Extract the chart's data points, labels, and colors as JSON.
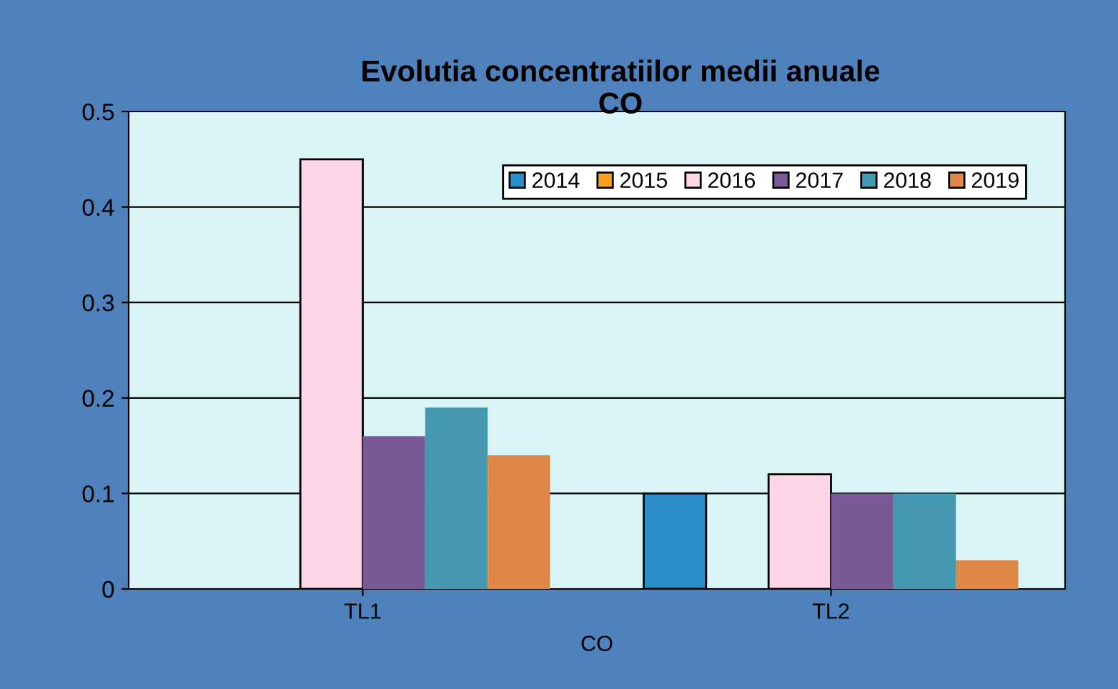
{
  "chart_data": {
    "type": "bar",
    "title": "Evolutia concentratiilor medii anuale\nCO",
    "xlabel": "CO",
    "categories": [
      "TL1",
      "TL2"
    ],
    "series": [
      {
        "name": "2014",
        "color": "#2a8fc8",
        "values": [
          null,
          0.1
        ]
      },
      {
        "name": "2015",
        "color": "#ffa020",
        "values": [
          null,
          null
        ]
      },
      {
        "name": "2016",
        "color": "#ffd6e6",
        "values": [
          0.45,
          0.12
        ]
      },
      {
        "name": "2017",
        "color": "#7a5a96",
        "values": [
          0.16,
          0.1
        ]
      },
      {
        "name": "2018",
        "color": "#4499b0",
        "values": [
          0.19,
          0.1
        ]
      },
      {
        "name": "2019",
        "color": "#e08848",
        "values": [
          0.14,
          0.03
        ]
      }
    ],
    "ylim": [
      0,
      0.5
    ],
    "yticks": [
      0,
      0.1,
      0.2,
      0.3,
      0.4,
      0.5
    ],
    "grid": "y",
    "legend": "top right"
  }
}
